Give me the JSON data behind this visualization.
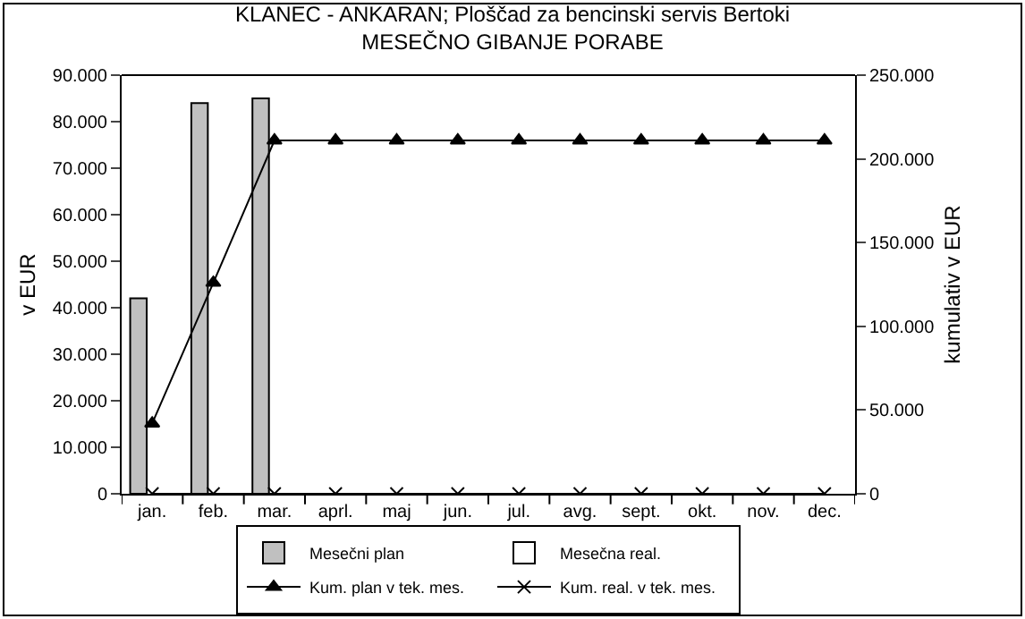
{
  "chart_data": {
    "type": "bar",
    "title": "KLANEC - ANKARAN; Ploščad za bencinski servis Bertoki",
    "subtitle": "MESEČNO GIBANJE PORABE",
    "ylabel": "v EUR",
    "y2label": "kumulativ v EUR",
    "categories": [
      "jan.",
      "feb.",
      "mar.",
      "aprl.",
      "maj",
      "jun.",
      "jul.",
      "avg.",
      "sept.",
      "okt.",
      "nov.",
      "dec."
    ],
    "series": [
      {
        "name": "Mesečni plan",
        "color": "#c0c0c0",
        "values": [
          42000,
          84000,
          85000,
          0,
          0,
          0,
          0,
          0,
          0,
          0,
          0,
          0
        ]
      },
      {
        "name": "Mesečna real.",
        "color": "#ffffff",
        "values": [
          0,
          0,
          0,
          0,
          0,
          0,
          0,
          0,
          0,
          0,
          0,
          0
        ]
      },
      {
        "name": "Kum. plan v tek. mes.",
        "type": "line",
        "axis": "y2",
        "marker": "triangle",
        "color": "#000000",
        "values": [
          42000,
          126000,
          211000,
          211000,
          211000,
          211000,
          211000,
          211000,
          211000,
          211000,
          211000,
          211000
        ]
      },
      {
        "name": "Kum. real. v tek. mes.",
        "type": "line",
        "axis": "y2",
        "marker": "cross",
        "color": "#000000",
        "values": [
          0,
          0,
          0,
          0,
          0,
          0,
          0,
          0,
          0,
          0,
          0,
          0
        ]
      }
    ],
    "ylim": [
      0,
      90000
    ],
    "yticks": [
      {
        "value": 0,
        "label": "0"
      },
      {
        "value": 10000,
        "label": "10.000"
      },
      {
        "value": 20000,
        "label": "20.000"
      },
      {
        "value": 30000,
        "label": "30.000"
      },
      {
        "value": 40000,
        "label": "40.000"
      },
      {
        "value": 50000,
        "label": "50.000"
      },
      {
        "value": 60000,
        "label": "60.000"
      },
      {
        "value": 70000,
        "label": "70.000"
      },
      {
        "value": 80000,
        "label": "80.000"
      },
      {
        "value": 90000,
        "label": "90.000"
      }
    ],
    "y2lim": [
      0,
      250000
    ],
    "y2ticks": [
      {
        "value": 0,
        "label": "0"
      },
      {
        "value": 50000,
        "label": "50.000"
      },
      {
        "value": 100000,
        "label": "100.000"
      },
      {
        "value": 150000,
        "label": "150.000"
      },
      {
        "value": 200000,
        "label": "200.000"
      },
      {
        "value": 250000,
        "label": "250.000"
      }
    ],
    "grid": false,
    "legend": "bottom"
  }
}
